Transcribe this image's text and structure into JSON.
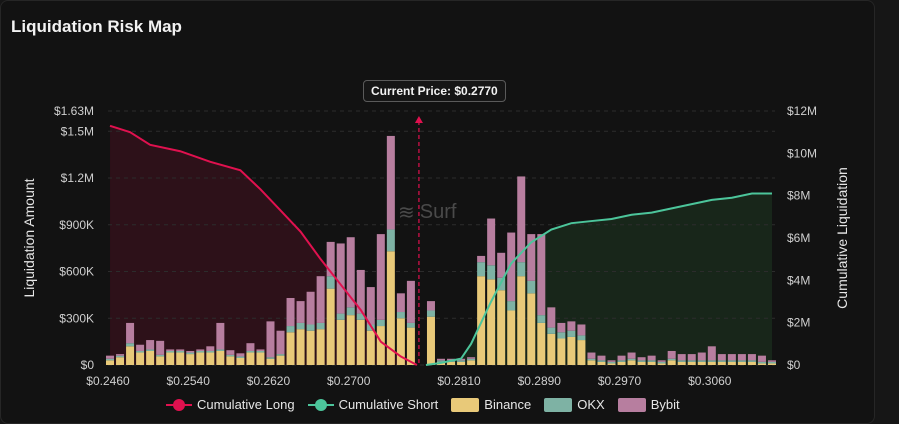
{
  "title": "Liquidation Risk Map",
  "tooltip": "Current Price: $0.2770",
  "watermark": "Surf",
  "colors": {
    "long": "#e0114f",
    "short": "#4cc59b",
    "binance": "#e8c979",
    "okx": "#7eb2a4",
    "bybit": "#b77e9f",
    "long_fill": "#2d1119",
    "short_fill": "#18261a"
  },
  "legend": [
    "Cumulative Long",
    "Cumulative Short",
    "Binance",
    "OKX",
    "Bybit"
  ],
  "chart_data": {
    "type": "bar",
    "current_price": 0.277,
    "xlabel": "",
    "ylabel": "Liquidation Amount",
    "y2label": "Cumulative Liquidation",
    "xlim": [
      0.246,
      0.3125
    ],
    "ylim": [
      0,
      1630000
    ],
    "y2lim": [
      0,
      12000000
    ],
    "x_ticks": [
      "$0.2460",
      "$0.2540",
      "$0.2620",
      "$0.2700",
      "$0.2810",
      "$0.2890",
      "$0.2970",
      "$0.3060"
    ],
    "y_ticks": [
      "$0",
      "$300K",
      "$600K",
      "$900K",
      "$1.2M",
      "$1.5M",
      "$1.63M"
    ],
    "y2_ticks": [
      "$0",
      "$2M",
      "$4M",
      "$6M",
      "$8M",
      "$10M",
      "$12M"
    ],
    "x": [
      0.2462,
      0.2472,
      0.2482,
      0.2492,
      0.2502,
      0.2512,
      0.2522,
      0.2532,
      0.2542,
      0.2552,
      0.2562,
      0.2572,
      0.2582,
      0.2592,
      0.2602,
      0.2612,
      0.2622,
      0.2632,
      0.2642,
      0.2652,
      0.2662,
      0.2672,
      0.2682,
      0.2692,
      0.2702,
      0.2712,
      0.2722,
      0.2732,
      0.2742,
      0.2752,
      0.2762,
      0.2782,
      0.2792,
      0.2802,
      0.2812,
      0.2822,
      0.2832,
      0.2842,
      0.2852,
      0.2862,
      0.2872,
      0.2882,
      0.2892,
      0.2902,
      0.2912,
      0.2922,
      0.2932,
      0.2942,
      0.2952,
      0.2962,
      0.2972,
      0.2982,
      0.2992,
      0.3002,
      0.3012,
      0.3022,
      0.3032,
      0.3042,
      0.3052,
      0.3062,
      0.3072,
      0.3082,
      0.3092,
      0.3102,
      0.3112,
      0.3122
    ],
    "series": [
      {
        "name": "Binance",
        "values": [
          30000,
          50000,
          120000,
          80000,
          90000,
          55000,
          80000,
          80000,
          70000,
          80000,
          80000,
          90000,
          55000,
          45000,
          80000,
          80000,
          40000,
          60000,
          210000,
          230000,
          220000,
          230000,
          490000,
          290000,
          320000,
          290000,
          220000,
          250000,
          730000,
          300000,
          240000,
          310000,
          20000,
          20000,
          20000,
          30000,
          570000,
          550000,
          480000,
          350000,
          570000,
          460000,
          270000,
          200000,
          170000,
          180000,
          160000,
          30000,
          20000,
          10000,
          20000,
          30000,
          20000,
          20000,
          10000,
          30000,
          20000,
          20000,
          20000,
          20000,
          20000,
          20000,
          20000,
          20000,
          10000,
          10000
        ]
      },
      {
        "name": "OKX",
        "values": [
          10000,
          10000,
          20000,
          10000,
          10000,
          10000,
          10000,
          10000,
          10000,
          10000,
          10000,
          10000,
          10000,
          10000,
          10000,
          10000,
          10000,
          10000,
          40000,
          40000,
          40000,
          40000,
          80000,
          40000,
          50000,
          40000,
          40000,
          40000,
          140000,
          40000,
          30000,
          40000,
          10000,
          10000,
          10000,
          10000,
          90000,
          90000,
          80000,
          60000,
          90000,
          80000,
          50000,
          40000,
          40000,
          40000,
          30000,
          10000,
          10000,
          10000,
          10000,
          10000,
          10000,
          10000,
          10000,
          10000,
          10000,
          10000,
          10000,
          10000,
          10000,
          10000,
          10000,
          10000,
          10000,
          10000
        ]
      },
      {
        "name": "Bybit",
        "values": [
          20000,
          10000,
          130000,
          40000,
          60000,
          90000,
          10000,
          10000,
          10000,
          10000,
          30000,
          170000,
          30000,
          20000,
          50000,
          10000,
          230000,
          150000,
          180000,
          140000,
          210000,
          300000,
          220000,
          450000,
          450000,
          280000,
          240000,
          550000,
          600000,
          120000,
          270000,
          60000,
          10000,
          10000,
          10000,
          10000,
          40000,
          300000,
          160000,
          440000,
          550000,
          300000,
          520000,
          130000,
          60000,
          60000,
          70000,
          40000,
          30000,
          10000,
          30000,
          40000,
          20000,
          30000,
          10000,
          50000,
          40000,
          40000,
          50000,
          90000,
          40000,
          40000,
          40000,
          40000,
          40000,
          10000
        ]
      }
    ],
    "cumulative_long": {
      "x": [
        0.2462,
        0.2482,
        0.2502,
        0.2532,
        0.2562,
        0.2592,
        0.2612,
        0.2632,
        0.2652,
        0.2672,
        0.2692,
        0.2712,
        0.2732,
        0.2752,
        0.2768
      ],
      "y": [
        11300000,
        11000000,
        10400000,
        10100000,
        9600000,
        9200000,
        8300000,
        7300000,
        6300000,
        5000000,
        3800000,
        2600000,
        1100000,
        400000,
        0
      ]
    },
    "cumulative_short": {
      "x": [
        0.2777,
        0.2792,
        0.2812,
        0.2822,
        0.2842,
        0.2862,
        0.2882,
        0.2902,
        0.2922,
        0.2942,
        0.2962,
        0.2982,
        0.3002,
        0.3022,
        0.3042,
        0.3062,
        0.3082,
        0.3102,
        0.3122
      ],
      "y": [
        0,
        100000,
        300000,
        1000000,
        3000000,
        4800000,
        5800000,
        6400000,
        6700000,
        6800000,
        6900000,
        7100000,
        7200000,
        7400000,
        7600000,
        7800000,
        7900000,
        8100000,
        8100000
      ]
    },
    "grid": true,
    "legend_position": "bottom"
  }
}
